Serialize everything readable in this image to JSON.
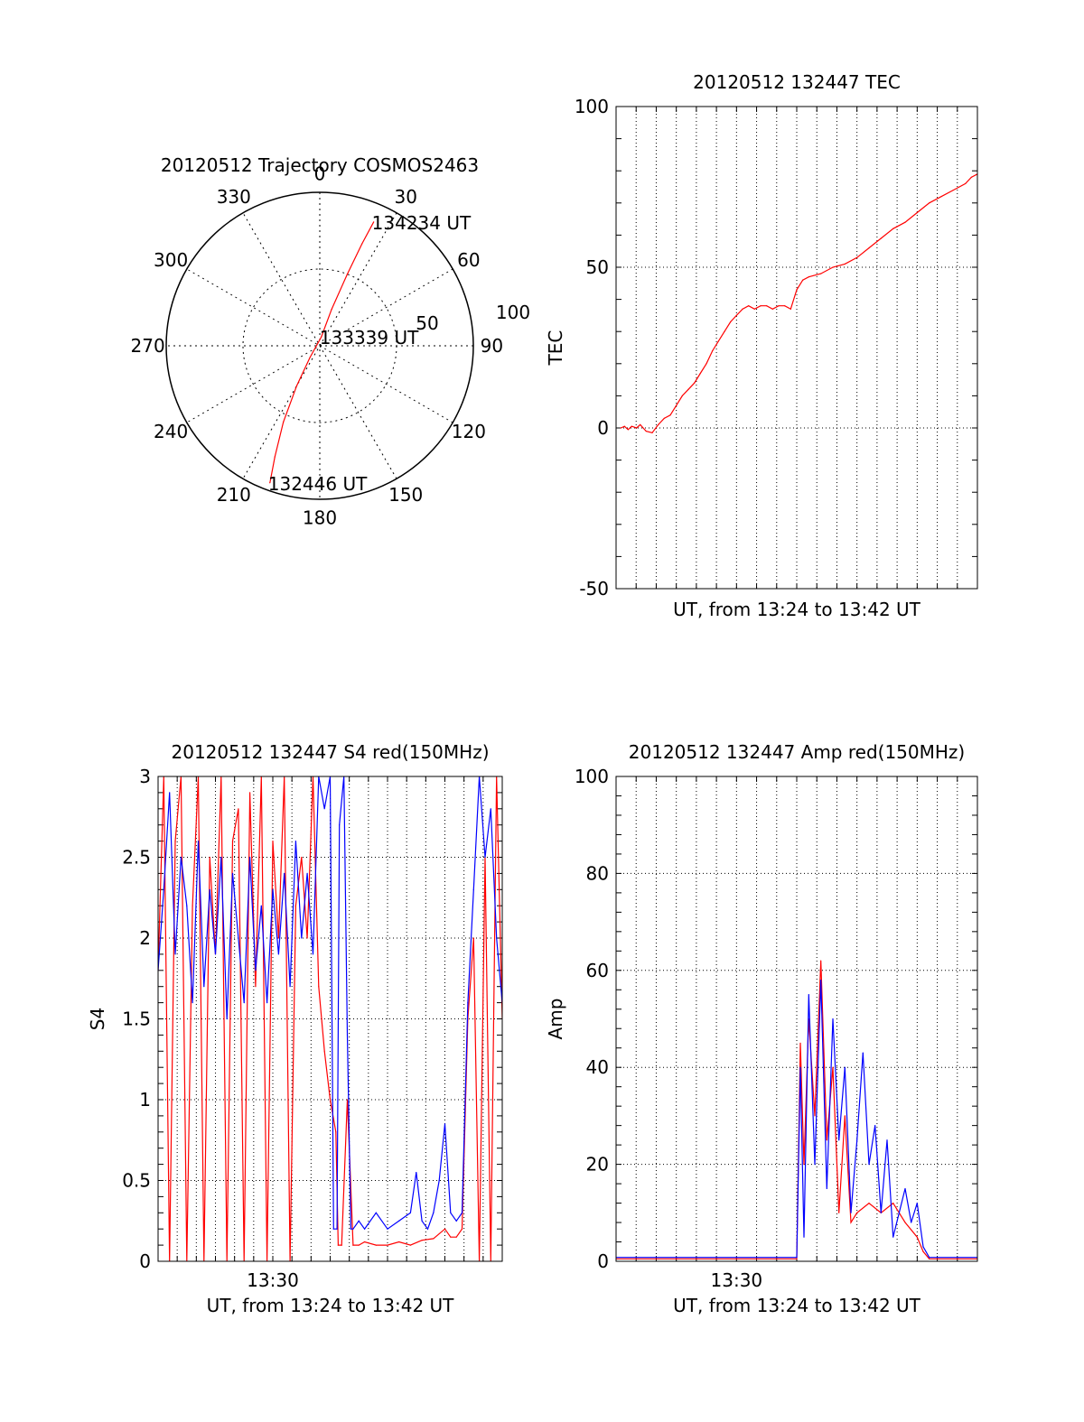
{
  "colors": {
    "red": "#ff0000",
    "blue": "#0000ff",
    "axis": "#000000",
    "grid": "#000000"
  },
  "chart_data": [
    {
      "id": "trajectory",
      "type": "scatter",
      "title": "20120512 Trajectory COSMOS2463",
      "polar": true,
      "azimuth_labels": [
        "0",
        "30",
        "60",
        "90",
        "120",
        "150",
        "180",
        "210",
        "240",
        "270",
        "300",
        "330"
      ],
      "radius_labels": [
        "50",
        "100"
      ],
      "rmax": 100,
      "series": [
        {
          "color": "#ff0000",
          "points": [
            {
              "az": 200.0,
              "r": 95
            },
            {
              "az": 202.0,
              "r": 78
            },
            {
              "az": 205.5,
              "r": 55
            },
            {
              "az": 210.0,
              "r": 30
            },
            {
              "az": 220.0,
              "r": 10
            },
            {
              "az": 10.0,
              "r": 6
            },
            {
              "az": 18.0,
              "r": 25
            },
            {
              "az": 21.0,
              "r": 50
            },
            {
              "az": 22.5,
              "r": 72
            },
            {
              "az": 23.5,
              "r": 88
            }
          ]
        }
      ],
      "annotations": [
        {
          "text": "134234 UT",
          "az": 23.5,
          "r": 88
        },
        {
          "text": "133339 UT",
          "az": 10.0,
          "r": 6
        },
        {
          "text": "132446 UT",
          "az": 200.0,
          "r": 95
        }
      ]
    },
    {
      "id": "tec",
      "type": "line",
      "title": "20120512 132447 TEC",
      "xlabel": "UT, from 13:24 to 13:42 UT",
      "ylabel": "TEC",
      "xlim": [
        13.4,
        13.7
      ],
      "ylim": [
        -50,
        100
      ],
      "yticks": [
        -50,
        0,
        50,
        100
      ],
      "xticks": [],
      "grid": true,
      "series": [
        {
          "color": "#ff0000",
          "x": [
            13.404,
            13.407,
            13.41,
            13.413,
            13.417,
            13.42,
            13.425,
            13.43,
            13.435,
            13.44,
            13.445,
            13.45,
            13.455,
            13.46,
            13.465,
            13.47,
            13.475,
            13.48,
            13.485,
            13.49,
            13.495,
            13.5,
            13.505,
            13.51,
            13.515,
            13.52,
            13.525,
            13.53,
            13.535,
            13.54,
            13.545,
            13.55,
            13.555,
            13.56,
            13.57,
            13.58,
            13.59,
            13.6,
            13.61,
            13.62,
            13.63,
            13.64,
            13.65,
            13.66,
            13.67,
            13.68,
            13.69,
            13.695,
            13.7
          ],
          "y": [
            0,
            0.5,
            -0.5,
            0.5,
            0,
            1,
            -1,
            -1.5,
            1,
            3,
            4,
            7,
            10,
            12,
            14,
            17,
            20,
            24,
            27,
            30,
            33,
            35,
            37,
            38,
            37,
            38,
            38,
            37,
            38,
            38,
            37,
            43,
            46,
            47,
            48,
            50,
            51,
            53,
            56,
            59,
            62,
            64,
            67,
            70,
            72,
            74,
            76,
            78,
            79
          ]
        }
      ]
    },
    {
      "id": "s4",
      "type": "line",
      "title": "20120512 132447 S4 red(150MHz)",
      "xlabel": "UT, from 13:24 to 13:42 UT",
      "ylabel": "S4",
      "xlim": [
        13.4,
        13.7
      ],
      "ylim": [
        0,
        3
      ],
      "yticks": [
        0,
        0.5,
        1,
        1.5,
        2,
        2.5,
        3
      ],
      "yticklabels": [
        "0",
        "0.5",
        "1",
        "1.5",
        "2",
        "2.5",
        "3"
      ],
      "xticks": [
        13.5
      ],
      "xticklabels": [
        "13:30"
      ],
      "grid": true,
      "series": [
        {
          "name": "",
          "color": "#ff0000",
          "x": [
            13.4,
            13.405,
            13.41,
            13.415,
            13.42,
            13.425,
            13.43,
            13.435,
            13.44,
            13.445,
            13.45,
            13.455,
            13.46,
            13.465,
            13.47,
            13.475,
            13.48,
            13.485,
            13.49,
            13.495,
            13.5,
            13.505,
            13.51,
            13.515,
            13.52,
            13.525,
            13.53,
            13.535,
            13.54,
            13.545,
            13.55,
            13.555,
            13.557,
            13.56,
            13.565,
            13.57,
            13.575,
            13.58,
            13.59,
            13.6,
            13.61,
            13.62,
            13.63,
            13.64,
            13.65,
            13.655,
            13.66,
            13.665,
            13.67,
            13.675,
            13.68,
            13.685,
            13.69,
            13.695,
            13.7
          ],
          "y": [
            1.8,
            3,
            0,
            2.6,
            3,
            0,
            2.2,
            3,
            0,
            2.5,
            1.9,
            3,
            0,
            2.6,
            2.8,
            0,
            2.9,
            1.7,
            3,
            0,
            2.6,
            2.0,
            3,
            0,
            2.2,
            2.5,
            2.0,
            3,
            1.7,
            1.3,
            1.0,
            0.8,
            0.1,
            0.1,
            1.0,
            0.1,
            0.1,
            0.12,
            0.1,
            0.1,
            0.12,
            0.1,
            0.13,
            0.14,
            0.2,
            0.15,
            0.15,
            0.2,
            1.5,
            2.0,
            0,
            2.5,
            0,
            3,
            1.5
          ]
        },
        {
          "name": "",
          "color": "#0000ff",
          "x": [
            13.4,
            13.405,
            13.41,
            13.415,
            13.42,
            13.425,
            13.43,
            13.435,
            13.44,
            13.445,
            13.45,
            13.455,
            13.46,
            13.465,
            13.47,
            13.475,
            13.48,
            13.485,
            13.49,
            13.495,
            13.5,
            13.505,
            13.51,
            13.515,
            13.52,
            13.525,
            13.53,
            13.535,
            13.54,
            13.545,
            13.55,
            13.553,
            13.556,
            13.558,
            13.562,
            13.565,
            13.568,
            13.57,
            13.575,
            13.58,
            13.59,
            13.6,
            13.61,
            13.62,
            13.625,
            13.63,
            13.635,
            13.64,
            13.645,
            13.65,
            13.655,
            13.66,
            13.665,
            13.67,
            13.675,
            13.68,
            13.685,
            13.69,
            13.695,
            13.7
          ],
          "y": [
            1.8,
            2.3,
            2.9,
            1.9,
            2.5,
            2.2,
            1.6,
            2.6,
            1.7,
            2.3,
            1.9,
            2.5,
            1.5,
            2.4,
            2.0,
            1.6,
            2.5,
            1.8,
            2.2,
            1.6,
            2.3,
            1.9,
            2.4,
            1.7,
            2.6,
            2.0,
            2.4,
            1.9,
            3.0,
            2.8,
            3.0,
            0.2,
            0.2,
            2.7,
            3.0,
            1.4,
            0.2,
            0.2,
            0.25,
            0.2,
            0.3,
            0.2,
            0.25,
            0.3,
            0.55,
            0.25,
            0.2,
            0.3,
            0.5,
            0.85,
            0.3,
            0.25,
            0.3,
            1.6,
            2.3,
            3.0,
            2.5,
            2.8,
            2.0,
            1.6
          ]
        }
      ]
    },
    {
      "id": "amp",
      "type": "line",
      "title": "20120512 132447 Amp red(150MHz)",
      "xlabel": "UT, from 13:24 to 13:42 UT",
      "ylabel": "Amp",
      "xlim": [
        13.4,
        13.7
      ],
      "ylim": [
        0,
        100
      ],
      "yticks": [
        0,
        20,
        40,
        60,
        80,
        100
      ],
      "xticks": [
        13.5
      ],
      "xticklabels": [
        "13:30"
      ],
      "grid": true,
      "series": [
        {
          "name": "",
          "color": "#ff0000",
          "x": [
            13.4,
            13.45,
            13.5,
            13.55,
            13.553,
            13.556,
            13.56,
            13.565,
            13.57,
            13.575,
            13.58,
            13.585,
            13.59,
            13.595,
            13.6,
            13.61,
            13.62,
            13.63,
            13.64,
            13.65,
            13.655,
            13.66,
            13.7
          ],
          "y": [
            0.5,
            0.5,
            0.5,
            0.5,
            45,
            20,
            50,
            30,
            62,
            25,
            40,
            10,
            30,
            8,
            10,
            12,
            10,
            12,
            8,
            5,
            2,
            0.5,
            0.5
          ]
        },
        {
          "name": "",
          "color": "#0000ff",
          "x": [
            13.4,
            13.45,
            13.5,
            13.55,
            13.553,
            13.556,
            13.56,
            13.565,
            13.57,
            13.575,
            13.58,
            13.585,
            13.59,
            13.595,
            13.6,
            13.605,
            13.61,
            13.615,
            13.62,
            13.625,
            13.63,
            13.64,
            13.645,
            13.65,
            13.655,
            13.66,
            13.7
          ],
          "y": [
            0.8,
            0.8,
            0.8,
            0.8,
            40,
            5,
            55,
            20,
            58,
            15,
            50,
            25,
            40,
            10,
            25,
            43,
            20,
            28,
            10,
            25,
            5,
            15,
            8,
            12,
            3,
            0.8,
            0.8
          ]
        }
      ]
    }
  ]
}
